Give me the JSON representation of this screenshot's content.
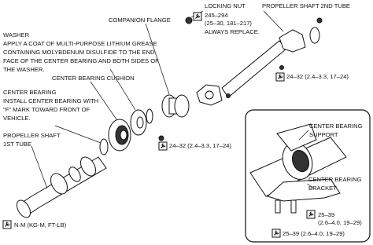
{
  "labels": {
    "companion_flange": "COMPANION FLANGE",
    "locking_nut": {
      "title": "LOCKING NUT",
      "lines": [
        "245–294",
        "(25–30, 181–217)",
        "ALWAYS REPLACE."
      ]
    },
    "propeller_shaft_2nd_tube": "PROPELLER SHAFT 2ND TUBE",
    "washer": {
      "title": "WASHER",
      "lines": [
        "APPLY A COAT OF MULTI-PURPOSE LITHIUM GREASE",
        "CONTAINING MOLYBDENUM DISULFIDE TO THE END",
        "FACE OF THE CENTER BEARING AND BOTH SIDES OF",
        "THE WASHER."
      ]
    },
    "center_bearing_cushion": "CENTER BEARING CUSHION",
    "center_bearing": {
      "title": "CENTER BEARING",
      "lines": [
        "INSTALL CENTER BEARING WITH",
        "\"F\" MARK TOWARD FRONT OF",
        "VEHICLE."
      ]
    },
    "torque_upper": "24–32 (2.4–3.3, 17–24)",
    "torque_middle": "24–32 (2.4–3.3, 17–24)",
    "propeller_shaft_1st_tube": [
      "PROPELLER SHAFT",
      "1ST TUBE"
    ],
    "center_bearing_support": [
      "CENTER BEARING",
      "SUPPORT"
    ],
    "center_bearing_bracket": [
      "CENTER BEARING",
      "BRACKET"
    ],
    "torque_bracket_upper": [
      "25–39",
      "(2.6–4.0, 19–29)"
    ],
    "torque_bracket_lower": "25–39 (2.6–4.0, 19–29)",
    "legend": "N·M (KG-M, FT-LB)"
  }
}
